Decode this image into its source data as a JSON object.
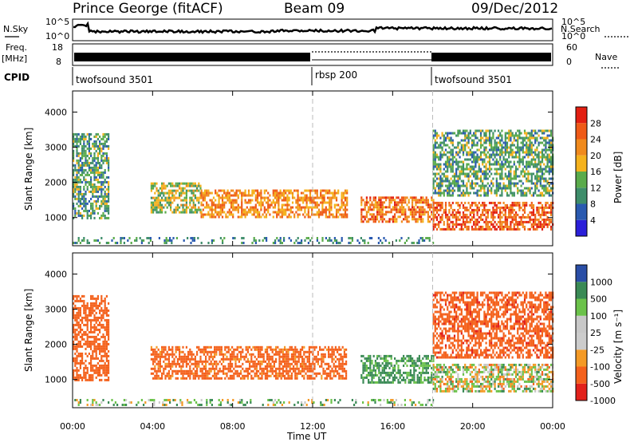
{
  "header": {
    "station": "Prince George (fitACF)",
    "beam": "Beam 09",
    "date": "09/Dec/2012"
  },
  "labels": {
    "nsky": "N.Sky",
    "nsearch": "N.Search",
    "freq": "Freq.",
    "freq_unit": "[MHz]",
    "nave": "Nave",
    "cpid": "CPID",
    "slant_range": "Slant Range [km]",
    "time_ut": "Time UT",
    "power_label": "Power [dB]",
    "velocity_label": "Velocity [m s⁻¹]"
  },
  "noise_axis": {
    "top": "10^5",
    "bottom": "10^0"
  },
  "freq_axis": {
    "left_top": "18",
    "left_bottom": "8",
    "right_top": "60",
    "right_bottom": "0"
  },
  "cpid_segments": [
    {
      "label": "twofsound 3501",
      "start_h": 0
    },
    {
      "label": "rbsp 200",
      "start_h": 12
    },
    {
      "label": "twofsound 3501",
      "start_h": 18
    }
  ],
  "colors": {
    "power": [
      "#2b1fd9",
      "#2a5ab0",
      "#3e8d6a",
      "#5aab4b",
      "#f5b21d",
      "#f08a1d",
      "#ef5a17",
      "#e21f12"
    ],
    "velocity": [
      "#e2211b",
      "#f4611c",
      "#f49a26",
      "#cccccc",
      "#c8c8c8",
      "#6bc24a",
      "#3a8a55",
      "#2a4ea6"
    ]
  },
  "chart_data": [
    {
      "type": "heatmap",
      "xlabel": "Time UT",
      "ylabel": "Slant Range [km]",
      "xlim": [
        0,
        24
      ],
      "ylim": [
        200,
        4600
      ],
      "x_ticks": [
        "00:00",
        "04:00",
        "08:00",
        "12:00",
        "16:00",
        "20:00",
        "00:00"
      ],
      "y_ticks": [
        1000,
        2000,
        3000,
        4000
      ],
      "colorbar": {
        "label": "Power [dB]",
        "ticks": [
          4,
          8,
          12,
          16,
          20,
          24,
          28
        ],
        "range": [
          0,
          32
        ]
      },
      "vertical_markers_h": [
        12,
        18
      ],
      "regions": [
        {
          "t0": 0.0,
          "t1": 1.8,
          "r0": 1000,
          "r1": 3400,
          "level": 12
        },
        {
          "t0": 3.9,
          "t1": 6.4,
          "r0": 1150,
          "r1": 2000,
          "level": 16
        },
        {
          "t0": 6.4,
          "t1": 13.7,
          "r0": 1050,
          "r1": 1800,
          "level": 22
        },
        {
          "t0": 14.4,
          "t1": 18.0,
          "r0": 900,
          "r1": 1600,
          "level": 24
        },
        {
          "t0": 18.0,
          "t1": 24.0,
          "r0": 650,
          "r1": 1450,
          "level": 26
        },
        {
          "t0": 18.0,
          "t1": 24.0,
          "r0": 1600,
          "r1": 3500,
          "level": 12
        },
        {
          "t0": 0.0,
          "t1": 18.0,
          "r0": 250,
          "r1": 450,
          "level": 10
        }
      ]
    },
    {
      "type": "heatmap",
      "xlabel": "Time UT",
      "ylabel": "Slant Range [km]",
      "xlim": [
        0,
        24
      ],
      "ylim": [
        200,
        4600
      ],
      "x_ticks": [
        "00:00",
        "04:00",
        "08:00",
        "12:00",
        "16:00",
        "20:00",
        "00:00"
      ],
      "y_ticks": [
        1000,
        2000,
        3000,
        4000
      ],
      "colorbar": {
        "label": "Velocity [m s⁻¹]",
        "ticks": [
          "1000",
          "500",
          "100",
          "25",
          "-25",
          "-100",
          "-500",
          "-1000"
        ]
      },
      "vertical_markers_h": [
        12,
        18
      ],
      "regions": [
        {
          "t0": 0.0,
          "t1": 1.8,
          "r0": 1000,
          "r1": 3400,
          "velocity": -300
        },
        {
          "t0": 3.9,
          "t1": 13.7,
          "r0": 1050,
          "r1": 1950,
          "velocity": -200
        },
        {
          "t0": 14.4,
          "t1": 18.0,
          "r0": 900,
          "r1": 1700,
          "velocity": 150
        },
        {
          "t0": 18.0,
          "t1": 24.0,
          "r0": 650,
          "r1": 1450,
          "velocity": 0
        },
        {
          "t0": 18.0,
          "t1": 24.0,
          "r0": 1600,
          "r1": 3500,
          "velocity": -400
        },
        {
          "t0": 0.0,
          "t1": 18.0,
          "r0": 250,
          "r1": 450,
          "velocity": 60
        }
      ]
    }
  ]
}
